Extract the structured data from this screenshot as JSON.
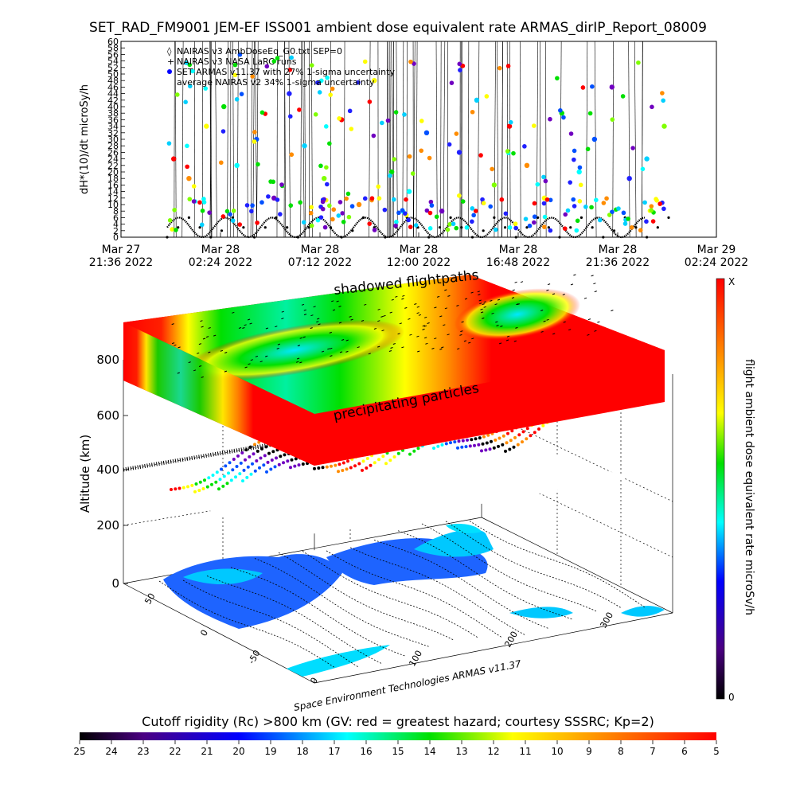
{
  "top_chart": {
    "title": "SET_RAD_FM9001   JEM-EF ISS001 ambient dose equivalent rate ARMAS_dirIP_Report_08009",
    "ylabel": "dH*(10)/dt microSy/h",
    "yticks": [
      "0",
      "2",
      "4",
      "6",
      "8",
      "10",
      "12",
      "14",
      "16",
      "18",
      "20",
      "22",
      "24",
      "26",
      "28",
      "30",
      "32",
      "34",
      "36",
      "38",
      "40",
      "42",
      "44",
      "46",
      "48",
      "50",
      "52",
      "54",
      "56",
      "58",
      "60"
    ],
    "xticks": [
      {
        "line1": "Mar 27",
        "line2": "21:36 2022"
      },
      {
        "line1": "Mar 28",
        "line2": "02:24 2022"
      },
      {
        "line1": "Mar 28",
        "line2": "07:12 2022"
      },
      {
        "line1": "Mar 28",
        "line2": "12:00 2022"
      },
      {
        "line1": "Mar 28",
        "line2": "16:48 2022"
      },
      {
        "line1": "Mar 28",
        "line2": "21:36 2022"
      },
      {
        "line1": "Mar 29",
        "line2": "02:24 2022"
      }
    ],
    "legend": [
      "NAIRAS v3 AmbDoseEq_G0.txt SEP=0",
      "NAIRAS v3 NASA LaRC runs",
      "SET ARMAS v11.37 with 27% 1-sigma uncertainty",
      "average NAIRAS v2 34% 1-sigma uncertainty"
    ]
  },
  "three_d": {
    "label_top": "shadowed flightpaths",
    "label_mid": "precipitating particles",
    "zlabel": "Altitude (km)",
    "zticks": [
      "0",
      "200",
      "400",
      "600",
      "800"
    ],
    "lat_ticks": [
      "50",
      "0",
      "-50"
    ],
    "lon_ticks": [
      "0",
      "100",
      "200",
      "300"
    ],
    "credit": "Space Environment Technologies ARMAS v11.37"
  },
  "colorbar_right": {
    "label": "flight ambient dose equivalent rate microSv/h",
    "top": "X",
    "bottom": "0"
  },
  "colorbar_bottom": {
    "title": "Cutoff rigidity (Rc) >800 km (GV: red = greatest hazard; courtesy SSSRC; Kp=2)",
    "ticks": [
      "25",
      "24",
      "23",
      "22",
      "21",
      "20",
      "19",
      "18",
      "17",
      "16",
      "15",
      "14",
      "13",
      "12",
      "11",
      "10",
      "9",
      "8",
      "7",
      "6",
      "5"
    ]
  },
  "colors": {
    "red": "#ff0000",
    "orange": "#ff8c00",
    "yellow": "#ffff00",
    "green": "#00e000",
    "cyan": "#00ffff",
    "blue": "#0050ff",
    "violet": "#7000c0",
    "black": "#000000"
  },
  "chart_data": {
    "type": "scatter",
    "title": "SET_RAD_FM9001   JEM-EF ISS001 ambient dose equivalent rate ARMAS_dirIP_Report_08009",
    "ylabel": "dH*(10)/dt microSy/h",
    "ylim": [
      0,
      60
    ],
    "xlim": [
      "Mar 27 21:36 2022",
      "Mar 29 02:24 2022"
    ],
    "series": [
      {
        "name": "NAIRAS v3 NASA LaRC runs",
        "x_hours": [
          0,
          0.5,
          1,
          1.5,
          2,
          2.5,
          3,
          3.5,
          4,
          4.5,
          5,
          5.5,
          6,
          6.5,
          7,
          7.5,
          8,
          8.5,
          9,
          9.5,
          10,
          10.5,
          11,
          11.5,
          12,
          12.5,
          13,
          13.5,
          14,
          14.5,
          15,
          15.5,
          16,
          16.5,
          17,
          17.5,
          18,
          18.5,
          19,
          19.5,
          20,
          20.5,
          21,
          21.5,
          22,
          22.5,
          23
        ],
        "values": [
          0,
          3,
          6,
          3,
          0,
          2,
          6,
          3,
          0,
          3,
          6,
          3,
          0,
          3,
          6,
          3,
          0,
          2,
          6,
          3,
          0,
          3,
          6,
          3,
          0,
          3,
          6,
          3,
          0,
          2,
          6,
          3,
          0,
          3,
          6,
          3,
          0,
          3,
          6,
          3,
          0,
          2,
          6,
          3,
          0,
          3,
          6
        ]
      },
      {
        "name": "SET ARMAS v11.37 with 27% 1-sigma uncertainty",
        "x_hours": [
          0.3,
          1.0,
          1.8,
          2.6,
          3.2,
          4.1,
          4.9,
          5.6,
          6.3,
          7.2,
          8.0,
          8.8,
          9.5,
          10.3,
          11.1,
          11.9,
          12.6,
          13.4,
          14.2,
          15.0,
          15.7,
          16.5,
          17.3,
          18.1,
          18.9,
          19.6,
          20.4,
          21.2,
          22.0,
          22.8
        ],
        "values": [
          24,
          18,
          34,
          40,
          22,
          30,
          12,
          44,
          28,
          18,
          36,
          10,
          48,
          20,
          14,
          32,
          8,
          26,
          42,
          16,
          34,
          22,
          12,
          38,
          20,
          30,
          46,
          18,
          24,
          34
        ]
      }
    ]
  }
}
